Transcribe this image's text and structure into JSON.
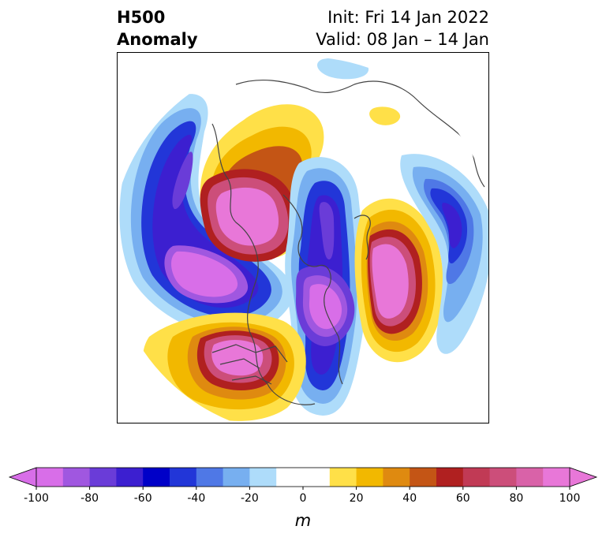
{
  "title": {
    "left_line1": "H500",
    "left_line2": "Anomaly",
    "right_line1": "Init: Fri 14 Jan 2022",
    "right_line2": "Valid: 08 Jan – 14 Jan"
  },
  "colorbar": {
    "unit": "m",
    "tick_labels": [
      "-100",
      "-80",
      "-60",
      "-40",
      "-20",
      "0",
      "20",
      "40",
      "60",
      "80",
      "100"
    ],
    "colors": [
      "#d86ee8",
      "#a057e0",
      "#6a3cd8",
      "#3c1fd0",
      "#0000c8",
      "#2236d8",
      "#4f78e6",
      "#77aff0",
      "#aedcfa",
      "#ffffff",
      "#ffffff",
      "#ffe048",
      "#f2b800",
      "#df8a10",
      "#c45515",
      "#b02020",
      "#c13a55",
      "#cc4e7a",
      "#d962a8",
      "#e877d8"
    ],
    "min_color": "#d86ee8",
    "max_color": "#e877d8"
  }
}
